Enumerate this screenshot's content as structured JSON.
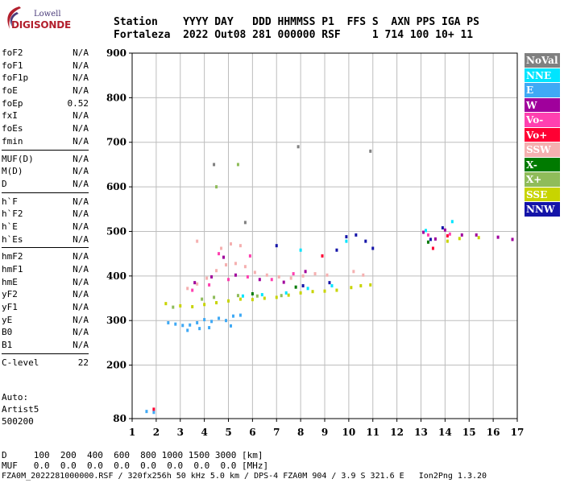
{
  "logo": {
    "lowell": "Lowell",
    "digisonde": "DIGISONDE"
  },
  "header": {
    "line1": "Station    YYYY DAY   DDD HHMMSS P1  FFS S  AXN PPS IGA PS",
    "line2": "Fortaleza  2022 Out08 281 000000 RSF     1 714 100 10+ 11"
  },
  "params": {
    "group1": [
      {
        "label": "foF2",
        "value": "N/A"
      },
      {
        "label": "foF1",
        "value": "N/A"
      },
      {
        "label": "foF1p",
        "value": "N/A"
      },
      {
        "label": "foE",
        "value": "N/A"
      },
      {
        "label": "foEp",
        "value": "0.52"
      },
      {
        "label": "fxI",
        "value": "N/A"
      },
      {
        "label": "foEs",
        "value": "N/A"
      },
      {
        "label": "fmin",
        "value": "N/A"
      }
    ],
    "group2": [
      {
        "label": "MUF(D)",
        "value": "N/A"
      },
      {
        "label": "M(D)",
        "value": "N/A"
      },
      {
        "label": "D",
        "value": "N/A"
      }
    ],
    "group3": [
      {
        "label": "h`F",
        "value": "N/A"
      },
      {
        "label": "h`F2",
        "value": "N/A"
      },
      {
        "label": "h`E",
        "value": "N/A"
      },
      {
        "label": "h`Es",
        "value": "N/A"
      }
    ],
    "group4": [
      {
        "label": "hmF2",
        "value": "N/A"
      },
      {
        "label": "hmF1",
        "value": "N/A"
      },
      {
        "label": "hmE",
        "value": "N/A"
      },
      {
        "label": "yF2",
        "value": "N/A"
      },
      {
        "label": "yF1",
        "value": "N/A"
      },
      {
        "label": "yE",
        "value": "N/A"
      },
      {
        "label": "B0",
        "value": "N/A"
      },
      {
        "label": "B1",
        "value": "N/A"
      }
    ],
    "clevel": {
      "label": "C-level",
      "value": "22"
    }
  },
  "auto": {
    "line1": "Auto:",
    "line2": "Artist5",
    "line3": "500200"
  },
  "legend": [
    {
      "name": "NoVal",
      "color": "#808080"
    },
    {
      "name": "NNE",
      "color": "#00e5ff"
    },
    {
      "name": "E",
      "color": "#3fa9f5"
    },
    {
      "name": "W",
      "color": "#a0009c"
    },
    {
      "name": "Vo-",
      "color": "#ff40b0"
    },
    {
      "name": "Vo+",
      "color": "#ff0033"
    },
    {
      "name": "SSW",
      "color": "#f5b0b0"
    },
    {
      "name": "X-",
      "color": "#007a00"
    },
    {
      "name": "X+",
      "color": "#8fbc5a"
    },
    {
      "name": "SSE",
      "color": "#c8d400"
    },
    {
      "name": "NNW",
      "color": "#1414a8"
    }
  ],
  "footer": {
    "row1": "D     100  200  400  600  800 1000 1500 3000 [km]",
    "row2": "MUF   0.0  0.0  0.0  0.0  0.0  0.0  0.0  0.0 [MHz]",
    "row3": "FZA0M_2022281000000.RSF / 320fx256h 50 kHz 5.0 km / DPS-4 FZA0M 904 / 3.9 S 321.6 E   Ion2Png 1.3.20"
  },
  "chart_data": {
    "type": "scatter",
    "xlim": [
      1,
      17
    ],
    "ylim": [
      80,
      900
    ],
    "x_ticks": [
      1,
      2,
      3,
      4,
      5,
      6,
      7,
      8,
      9,
      10,
      11,
      12,
      13,
      14,
      15,
      16,
      17
    ],
    "y_ticks": [
      80,
      200,
      300,
      400,
      500,
      600,
      700,
      800,
      900
    ],
    "grid": true,
    "legend_position": "right",
    "series": [
      {
        "name": "E",
        "color": "#3fa9f5",
        "points": [
          [
            2.5,
            295
          ],
          [
            2.8,
            292
          ],
          [
            3.1,
            289
          ],
          [
            3.4,
            290
          ],
          [
            3.7,
            295
          ],
          [
            4.0,
            302
          ],
          [
            4.3,
            298
          ],
          [
            4.6,
            305
          ],
          [
            4.9,
            300
          ],
          [
            5.2,
            310
          ],
          [
            5.5,
            312
          ],
          [
            3.3,
            278
          ],
          [
            3.8,
            282
          ],
          [
            4.2,
            284
          ],
          [
            5.1,
            288
          ],
          [
            1.6,
            96
          ],
          [
            1.9,
            94
          ]
        ]
      },
      {
        "name": "SSE",
        "color": "#c8d400",
        "points": [
          [
            2.4,
            338
          ],
          [
            3.0,
            333
          ],
          [
            3.5,
            331
          ],
          [
            4.0,
            336
          ],
          [
            4.5,
            340
          ],
          [
            5.0,
            344
          ],
          [
            5.5,
            348
          ],
          [
            6.0,
            347
          ],
          [
            6.5,
            350
          ],
          [
            7.0,
            352
          ],
          [
            7.5,
            357
          ],
          [
            8.0,
            362
          ],
          [
            8.5,
            365
          ],
          [
            9.0,
            366
          ],
          [
            9.5,
            368
          ],
          [
            10.1,
            374
          ],
          [
            10.5,
            378
          ],
          [
            10.9,
            380
          ],
          [
            14.1,
            478
          ],
          [
            14.6,
            484
          ],
          [
            15.4,
            486
          ]
        ]
      },
      {
        "name": "SSW",
        "color": "#f5b0b0",
        "points": [
          [
            3.3,
            372
          ],
          [
            3.7,
            382
          ],
          [
            4.1,
            395
          ],
          [
            4.5,
            412
          ],
          [
            4.9,
            425
          ],
          [
            5.3,
            428
          ],
          [
            5.7,
            421
          ],
          [
            6.1,
            408
          ],
          [
            6.6,
            402
          ],
          [
            7.1,
            398
          ],
          [
            7.6,
            395
          ],
          [
            8.1,
            400
          ],
          [
            8.6,
            405
          ],
          [
            9.1,
            402
          ],
          [
            10.2,
            410
          ],
          [
            10.6,
            402
          ],
          [
            4.7,
            462
          ],
          [
            5.1,
            472
          ],
          [
            5.5,
            468
          ],
          [
            3.7,
            478
          ]
        ]
      },
      {
        "name": "Vo-",
        "color": "#ff40b0",
        "points": [
          [
            3.5,
            368
          ],
          [
            4.2,
            380
          ],
          [
            5.0,
            392
          ],
          [
            5.8,
            398
          ],
          [
            6.8,
            392
          ],
          [
            7.7,
            405
          ],
          [
            4.6,
            450
          ],
          [
            5.9,
            445
          ],
          [
            13.3,
            492
          ],
          [
            14.2,
            494
          ]
        ]
      },
      {
        "name": "W",
        "color": "#a0009c",
        "points": [
          [
            3.6,
            385
          ],
          [
            4.3,
            398
          ],
          [
            5.3,
            402
          ],
          [
            6.3,
            392
          ],
          [
            7.3,
            386
          ],
          [
            8.2,
            410
          ],
          [
            13.1,
            498
          ],
          [
            13.6,
            483
          ],
          [
            14.0,
            503
          ],
          [
            14.7,
            492
          ],
          [
            15.3,
            492
          ],
          [
            16.2,
            487
          ],
          [
            16.8,
            482
          ],
          [
            4.8,
            442
          ]
        ]
      },
      {
        "name": "NNE",
        "color": "#00e5ff",
        "points": [
          [
            5.6,
            355
          ],
          [
            6.4,
            358
          ],
          [
            7.4,
            362
          ],
          [
            8.3,
            372
          ],
          [
            9.3,
            378
          ],
          [
            13.2,
            502
          ],
          [
            14.3,
            522
          ],
          [
            8.0,
            458
          ],
          [
            9.9,
            478
          ]
        ]
      },
      {
        "name": "X+",
        "color": "#8fbc5a",
        "points": [
          [
            2.7,
            330
          ],
          [
            3.9,
            348
          ],
          [
            4.4,
            352
          ],
          [
            5.4,
            356
          ],
          [
            6.2,
            355
          ],
          [
            7.2,
            356
          ],
          [
            4.5,
            600
          ],
          [
            5.4,
            650
          ]
        ]
      },
      {
        "name": "NNW",
        "color": "#1414a8",
        "points": [
          [
            8.1,
            378
          ],
          [
            9.2,
            385
          ],
          [
            9.9,
            488
          ],
          [
            10.3,
            492
          ],
          [
            10.7,
            478
          ],
          [
            11.0,
            462
          ],
          [
            13.4,
            482
          ],
          [
            13.9,
            508
          ],
          [
            7.0,
            468
          ],
          [
            9.5,
            458
          ]
        ]
      },
      {
        "name": "Vo+",
        "color": "#ff0033",
        "points": [
          [
            1.9,
            101
          ],
          [
            13.5,
            462
          ],
          [
            14.1,
            490
          ],
          [
            8.9,
            445
          ]
        ]
      },
      {
        "name": "X-",
        "color": "#007a00",
        "points": [
          [
            6.0,
            360
          ],
          [
            7.8,
            375
          ],
          [
            13.3,
            476
          ]
        ]
      },
      {
        "name": "NoVal",
        "color": "#808080",
        "points": [
          [
            4.4,
            650
          ],
          [
            5.7,
            520
          ],
          [
            7.9,
            690
          ],
          [
            10.9,
            680
          ]
        ]
      }
    ]
  }
}
